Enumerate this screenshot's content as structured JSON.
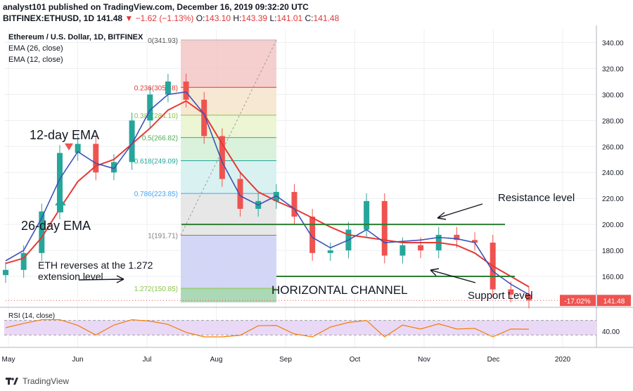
{
  "header": {
    "publisher": "analyst101 published on TradingView.com, December 16, 2019 09:32:20 UTC",
    "symbol": "BITFINEX:ETHUSD, 1D",
    "price": "141.48",
    "change": "▼ −1.62 (−1.13%)",
    "o_label": "O:",
    "o_value": "143.10",
    "h_label": "H:",
    "h_value": "143.39",
    "l_label": "L:",
    "l_value": "141.01",
    "c_label": "C:",
    "c_value": "141.48"
  },
  "legend": {
    "title": "Ethereum / U.S. Dollar, 1D, BITFINEX",
    "ema26": "EMA (26, close)",
    "ema12": "EMA (12, close)"
  },
  "annotations": {
    "ema12_label": "12-day EMA",
    "ema26_label": "26-day EMA",
    "resistance": "Resistance level",
    "support": "Support Level",
    "channel": "HORIZONTAL CHANNEL",
    "reversal_line1": "ETH reverses at the 1.272",
    "reversal_line2": "extension level"
  },
  "price_tags": {
    "change_pct": "-17.02%",
    "last": "141.48"
  },
  "rsi": {
    "label": "RSI (14, close)",
    "upper": 70,
    "lower": 30,
    "tick_label": "40.00"
  },
  "footer": {
    "brand": "TradingView"
  },
  "colors": {
    "up": "#26a69a",
    "down": "#ef5350",
    "ema26": "#e53935",
    "ema12": "#3f51b5",
    "rsi_line": "#f57c00",
    "rsi_band": "#e9d9f7",
    "level_line": "#2e7d32",
    "fib_0": "#f3c6c6",
    "fib_236": "#f6e4cd",
    "fib_382": "#e9f3cd",
    "fib_5": "#d4f0d6",
    "fib_618": "#d2efef",
    "fib_786": "#e3e3e3",
    "fib_ext": "#cccff5",
    "fib_ext2": "#a9d8b5"
  },
  "chart_data": {
    "type": "line",
    "title": "Ethereum / U.S. Dollar, 1D, BITFINEX",
    "x_axis": [
      "May",
      "Jun",
      "Jul",
      "Aug",
      "Sep",
      "Oct",
      "Nov",
      "Dec",
      "2020"
    ],
    "y_ticks": [
      160,
      180,
      200,
      220,
      240,
      260,
      280,
      300,
      320,
      340
    ],
    "y_tick_labels": [
      "160.00",
      "180.00",
      "200.00",
      "220.00",
      "240.00",
      "260.00",
      "280.00",
      "300.00",
      "320.00",
      "340.00"
    ],
    "ylim": [
      140,
      350
    ],
    "grid": true,
    "fibonacci": [
      {
        "ratio": "0",
        "price": 341.93,
        "label": "0(341.93)"
      },
      {
        "ratio": "0.236",
        "price": 305.48,
        "label": "0.236(305.48)"
      },
      {
        "ratio": "0.382",
        "price": 284.1,
        "label": "0.382(284.10)"
      },
      {
        "ratio": "0.5",
        "price": 266.82,
        "label": "0.5(266.82)"
      },
      {
        "ratio": "0.618",
        "price": 249.09,
        "label": "0.618(249.09)"
      },
      {
        "ratio": "0.786",
        "price": 223.85,
        "label": "0.786(223.85)"
      },
      {
        "ratio": "1",
        "price": 191.71,
        "label": "1(191.71)"
      },
      {
        "ratio": "1.272",
        "price": 150.85,
        "label": "1.272(150.85)"
      }
    ],
    "resistance_level": 200,
    "support_level": 160,
    "last_price": 141.48,
    "series": [
      {
        "name": "EMA (26, close)",
        "values": [
          170,
          174,
          190,
          212,
          233,
          245,
          250,
          262,
          274,
          288,
          295,
          285,
          262,
          240,
          225,
          218,
          212,
          205,
          198,
          192,
          190,
          188,
          186,
          186,
          186,
          184,
          178,
          168,
          160,
          152
        ]
      },
      {
        "name": "EMA (12, close)",
        "values": [
          172,
          180,
          205,
          235,
          256,
          247,
          243,
          262,
          288,
          300,
          302,
          285,
          248,
          222,
          215,
          222,
          212,
          190,
          182,
          188,
          196,
          186,
          187,
          188,
          190,
          189,
          186,
          164,
          154,
          146
        ]
      }
    ],
    "price_series": [
      165,
      178,
      210,
      255,
      262,
      240,
      248,
      280,
      300,
      310,
      296,
      268,
      235,
      212,
      218,
      225,
      206,
      178,
      180,
      196,
      218,
      176,
      184,
      180,
      192,
      188,
      186,
      150,
      146,
      141.48
    ],
    "x_index_dates": [
      "Apr-28",
      "May-06",
      "May-14",
      "May-22",
      "May-30",
      "Jun-07",
      "Jun-15",
      "Jun-23",
      "Jul-01",
      "Jul-09",
      "Jul-17",
      "Jul-25",
      "Aug-02",
      "Aug-10",
      "Aug-18",
      "Aug-26",
      "Sep-03",
      "Sep-11",
      "Sep-19",
      "Sep-27",
      "Oct-05",
      "Oct-13",
      "Oct-21",
      "Oct-29",
      "Nov-06",
      "Nov-14",
      "Nov-22",
      "Nov-30",
      "Dec-08",
      "Dec-16"
    ]
  }
}
